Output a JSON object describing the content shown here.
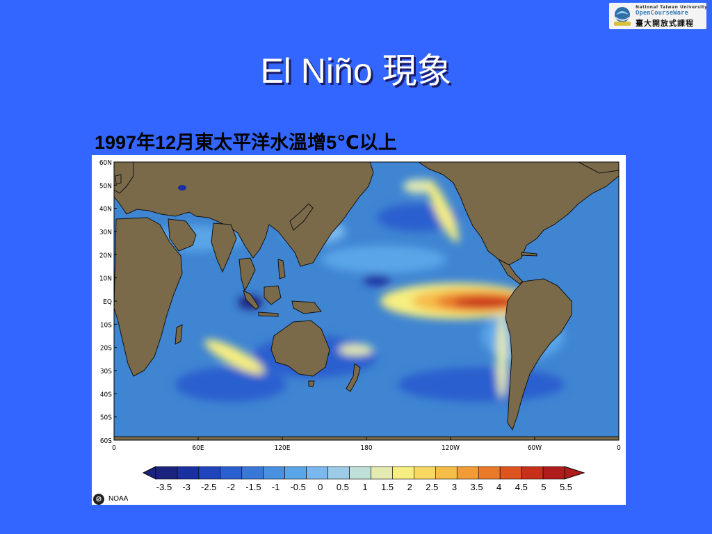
{
  "logo": {
    "line1": "National Taiwan University",
    "line2": "OpenCourseWare",
    "line3": "臺大開放式課程",
    "icon": "ntu-ocw-emblem-icon"
  },
  "slide": {
    "title": "El Niño 現象",
    "subtitle": "1997年12月東太平洋水溫增5℃以上"
  },
  "map": {
    "lat_labels": [
      "60N",
      "50N",
      "40N",
      "30N",
      "20N",
      "10N",
      "EQ",
      "10S",
      "20S",
      "30S",
      "40S",
      "50S",
      "60S"
    ],
    "lon_labels": [
      "0",
      "60E",
      "120E",
      "180",
      "120W",
      "60W",
      "0"
    ],
    "colorbar": {
      "labels": [
        "-3.5",
        "-3",
        "-2.5",
        "-2",
        "-1.5",
        "-1",
        "-0.5",
        "0",
        "0.5",
        "1",
        "1.5",
        "2",
        "2.5",
        "3",
        "3.5",
        "4",
        "4.5",
        "5",
        "5.5"
      ],
      "colors": [
        "#1a237e",
        "#1a2fa0",
        "#1f45bd",
        "#2a5fcf",
        "#3a78d8",
        "#4a90e0",
        "#5aa5e8",
        "#7ab8ee",
        "#9ccbe8",
        "#bfe0d8",
        "#e4ebb0",
        "#f6ee80",
        "#f8d860",
        "#f6bc48",
        "#f29c38",
        "#ea7a2a",
        "#dd5420",
        "#c8301a",
        "#b01c1c"
      ]
    },
    "land_color": "#7a6a4a",
    "ocean_color": "#3f85d2"
  },
  "credit": {
    "license_icon": "cc-zero-icon",
    "license_glyph": "⊘",
    "source": "NOAA"
  }
}
